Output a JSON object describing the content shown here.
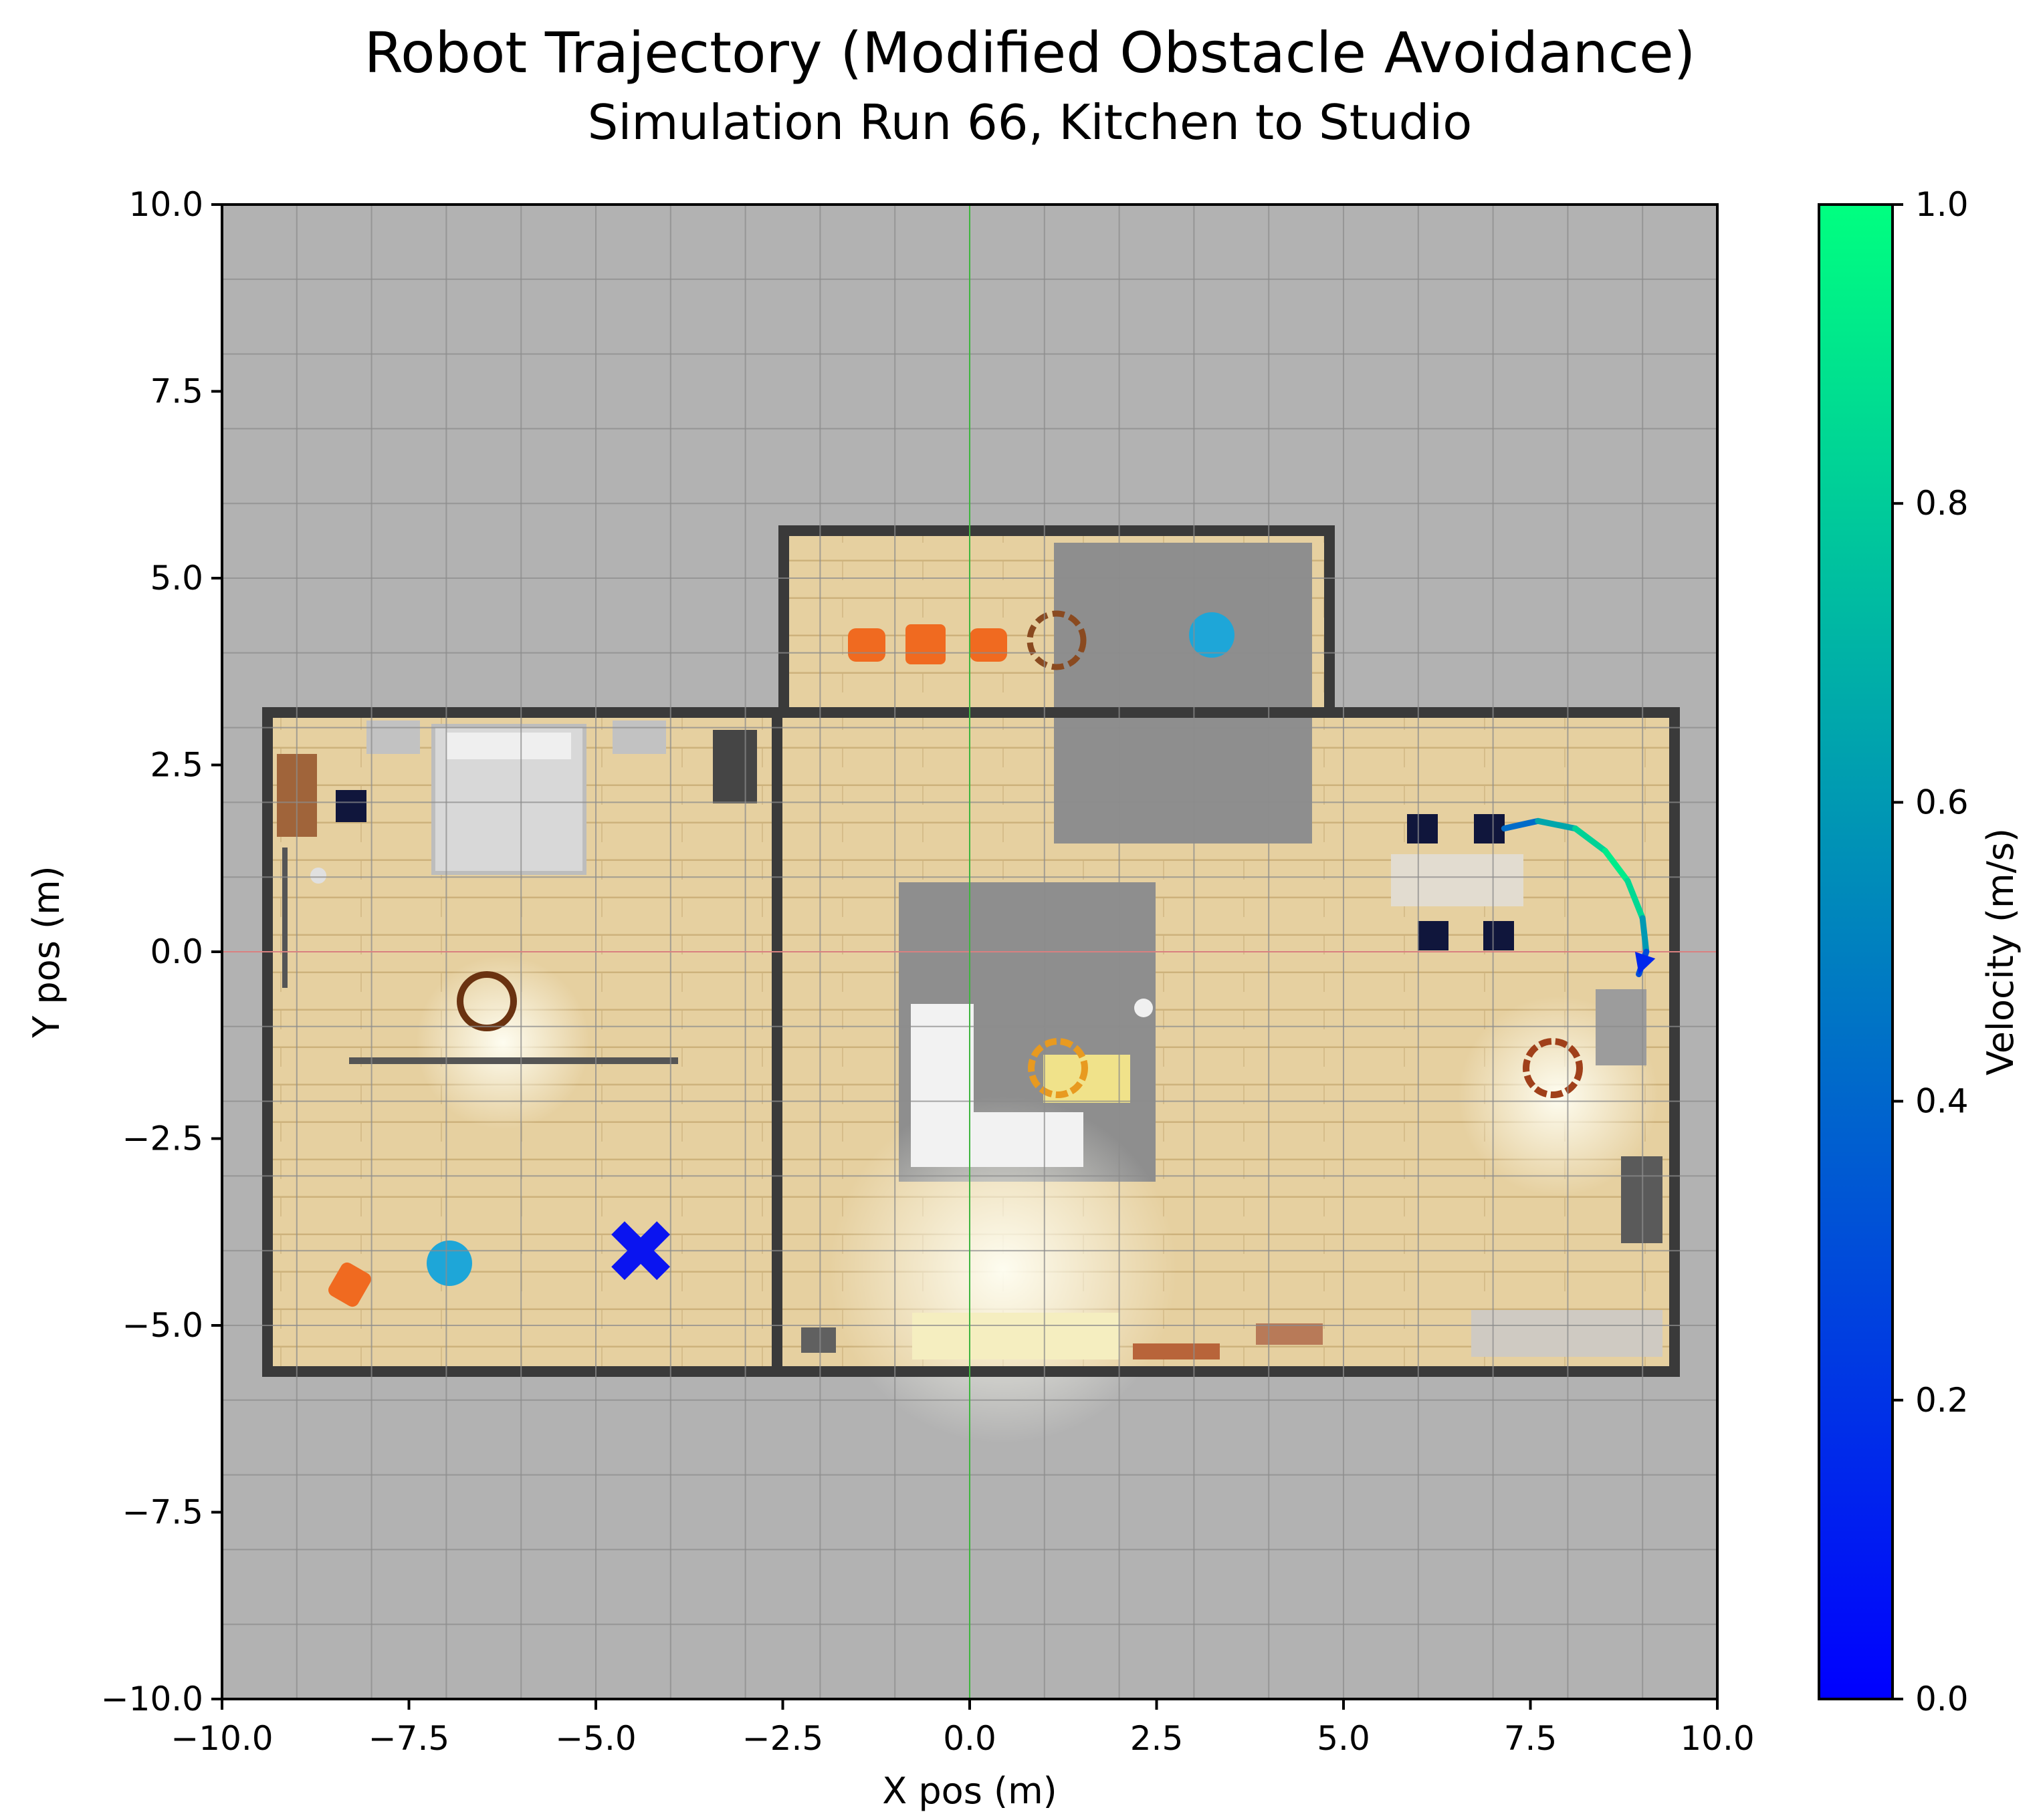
{
  "colors": {
    "background": "#b2b2b2",
    "grid": "#8c8c8c",
    "wall": "#3a3a3a",
    "floor": "#e8d3a4",
    "rug": "#8c8c8c",
    "origin_x_axis_line": "#d98080",
    "origin_y_axis_line": "#3fb53f",
    "goal_marker": "#0a14f0",
    "colormap_low": "#0000ff",
    "colormap_high": "#00ff80"
  },
  "chart_data": {
    "type": "scatter",
    "title": "Robot Trajectory (Modified Obstacle Avoidance)",
    "subtitle": "Simulation Run 66, Kitchen to Studio",
    "xlabel": "X pos (m)",
    "ylabel": "Y pos (m)",
    "xlim": [
      -10,
      10
    ],
    "ylim": [
      -10,
      10
    ],
    "xticks": [
      -10,
      -7.5,
      -5,
      -2.5,
      0,
      2.5,
      5,
      7.5,
      10
    ],
    "yticks": [
      -10,
      -7.5,
      -5,
      -2.5,
      0,
      2.5,
      5,
      7.5,
      10
    ],
    "xtick_labels": [
      "−10.0",
      "−7.5",
      "−5.0",
      "−2.5",
      "0.0",
      "2.5",
      "5.0",
      "7.5",
      "10.0"
    ],
    "ytick_labels": [
      "−10.0",
      "−7.5",
      "−5.0",
      "−2.5",
      "0.0",
      "2.5",
      "5.0",
      "7.5",
      "10.0"
    ],
    "grid": true,
    "background": "floor-plan map",
    "trajectory": {
      "points": [
        {
          "x": 7.15,
          "y": 1.65,
          "v": 0.3
        },
        {
          "x": 7.6,
          "y": 1.75,
          "v": 0.55
        },
        {
          "x": 8.1,
          "y": 1.65,
          "v": 0.75
        },
        {
          "x": 8.5,
          "y": 1.35,
          "v": 0.9
        },
        {
          "x": 8.8,
          "y": 0.95,
          "v": 0.95
        },
        {
          "x": 9.0,
          "y": 0.45,
          "v": 0.75
        },
        {
          "x": 9.05,
          "y": 0.0,
          "v": 0.45
        },
        {
          "x": 8.95,
          "y": -0.3,
          "v": 0.15
        }
      ]
    },
    "goal": {
      "x": -4.4,
      "y": -4.0,
      "marker": "X"
    },
    "colorbar": {
      "label": "Velocity (m/s)",
      "min": 0.0,
      "max": 1.0,
      "ticks": [
        0.0,
        0.2,
        0.4,
        0.6,
        0.8,
        1.0
      ],
      "tick_labels": [
        "0.0",
        "0.2",
        "0.4",
        "0.6",
        "0.8",
        "1.0"
      ],
      "colormap": "winter"
    }
  }
}
